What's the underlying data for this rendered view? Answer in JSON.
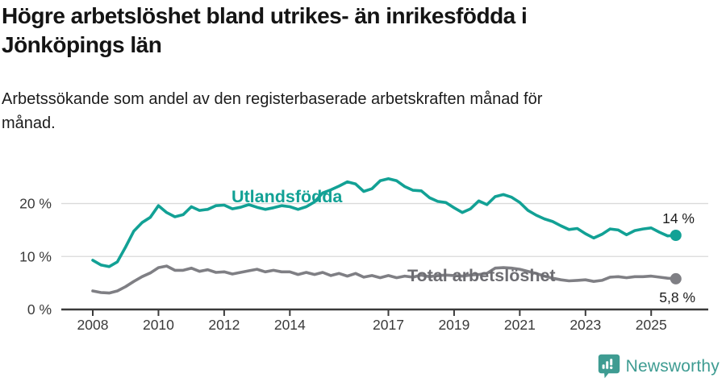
{
  "header": {
    "title": "Högre arbetslöshet bland utrikes- än inrikesfödda i Jönköpings län",
    "subtitle": "Arbetssökande som andel av den registerbaserade arbetskraften månad för månad."
  },
  "chart_data": {
    "type": "line",
    "title": "Högre arbetslöshet bland utrikes- än inrikesfödda i Jönköpings län",
    "subtitle": "Arbetssökande som andel av den registerbaserade arbetskraften månad för månad.",
    "x_unit": "year, quarterly readings of monthly data",
    "x_start": 2008,
    "points_per_year": 4,
    "x_tick_labels": [
      "2008",
      "2010",
      "2012",
      "2014",
      "2017",
      "2019",
      "2021",
      "2023",
      "2025"
    ],
    "y_ticks": [
      {
        "value": 0,
        "label": "0 %"
      },
      {
        "value": 10,
        "label": "10 %"
      },
      {
        "value": 20,
        "label": "20 %"
      }
    ],
    "ylim": [
      0,
      28
    ],
    "grid": "horizontal-only",
    "legend": "inline-series-labels",
    "axis_color": "#3a3a3a",
    "grid_color": "#dadada",
    "series": [
      {
        "name": "Utlandsfödda",
        "color": "#12a195",
        "label_color": "#12a195",
        "end_label": "14 %",
        "values": [
          9.3,
          8.4,
          8.1,
          9.0,
          11.8,
          14.8,
          16.4,
          17.4,
          19.6,
          18.3,
          17.5,
          17.9,
          19.4,
          18.7,
          18.9,
          19.6,
          19.7,
          19.0,
          19.3,
          19.8,
          19.3,
          18.9,
          19.2,
          19.6,
          19.4,
          18.9,
          19.4,
          20.3,
          22.0,
          22.6,
          23.3,
          24.1,
          23.7,
          22.3,
          22.8,
          24.3,
          24.7,
          24.3,
          23.2,
          22.5,
          22.4,
          21.1,
          20.4,
          20.2,
          19.2,
          18.3,
          19.0,
          20.5,
          19.8,
          21.3,
          21.7,
          21.2,
          20.2,
          18.7,
          17.8,
          17.1,
          16.6,
          15.8,
          15.1,
          15.3,
          14.3,
          13.5,
          14.2,
          15.2,
          15.0,
          14.1,
          14.9,
          15.2,
          15.4,
          14.6,
          13.9,
          14.0
        ]
      },
      {
        "name": "Total arbetslöshet",
        "color": "#7f7f84",
        "label_color": "#6d6d72",
        "end_label": "5,8 %",
        "values": [
          3.5,
          3.2,
          3.1,
          3.5,
          4.3,
          5.3,
          6.2,
          6.9,
          7.9,
          8.2,
          7.4,
          7.4,
          7.8,
          7.2,
          7.5,
          7.0,
          7.1,
          6.7,
          7.0,
          7.3,
          7.6,
          7.1,
          7.4,
          7.1,
          7.1,
          6.6,
          7.0,
          6.6,
          7.0,
          6.4,
          6.8,
          6.3,
          6.8,
          6.1,
          6.4,
          6.0,
          6.4,
          6.0,
          6.3,
          6.1,
          6.5,
          6.2,
          6.4,
          6.5,
          6.4,
          6.3,
          6.5,
          6.6,
          6.8,
          7.8,
          7.9,
          7.8,
          7.6,
          7.2,
          6.8,
          6.3,
          5.9,
          5.6,
          5.4,
          5.5,
          5.6,
          5.3,
          5.5,
          6.1,
          6.2,
          6.0,
          6.2,
          6.2,
          6.3,
          6.1,
          5.9,
          5.8
        ]
      }
    ]
  },
  "footer": {
    "brand": "Newsworthy",
    "brand_color": "#3e9c92",
    "logo_icon": "newsworthy-speech-bubble-bar-chart-icon"
  }
}
